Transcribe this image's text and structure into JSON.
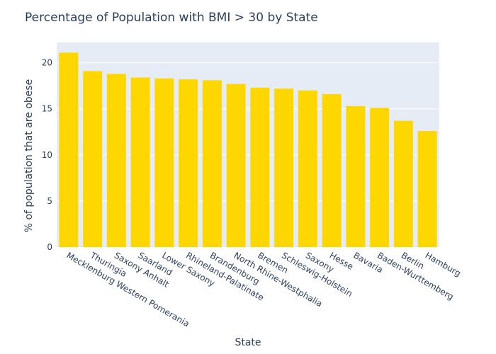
{
  "chart_data": {
    "type": "bar",
    "title": "Percentage of Population with BMI > 30 by State",
    "xlabel": "State",
    "ylabel": "% of population that are obese",
    "categories": [
      "Mecklenburg Western Pomerania",
      "Thuringia",
      "Saxony Anhalt",
      "Saarland",
      "Lower Saxony",
      "Rhineland-Palatinate",
      "Brandenburg",
      "North Rhine-Westphalia",
      "Bremen",
      "Schleswig-Holstein",
      "Saxony",
      "Hesse",
      "Bavaria",
      "Baden-Wurttemberg",
      "Berlin",
      "Hamburg"
    ],
    "values": [
      21.1,
      19.1,
      18.8,
      18.4,
      18.3,
      18.2,
      18.1,
      17.7,
      17.3,
      17.2,
      17.0,
      16.6,
      15.3,
      15.1,
      13.7,
      12.6
    ],
    "yticks": [
      0,
      5,
      10,
      15,
      20
    ],
    "ylim": [
      0,
      22.2
    ],
    "grid": true,
    "colors": {
      "bar": "#ffd700",
      "plot_bg": "#e5ecf6",
      "grid": "#ffffff",
      "text": "#2a3f5f"
    }
  }
}
